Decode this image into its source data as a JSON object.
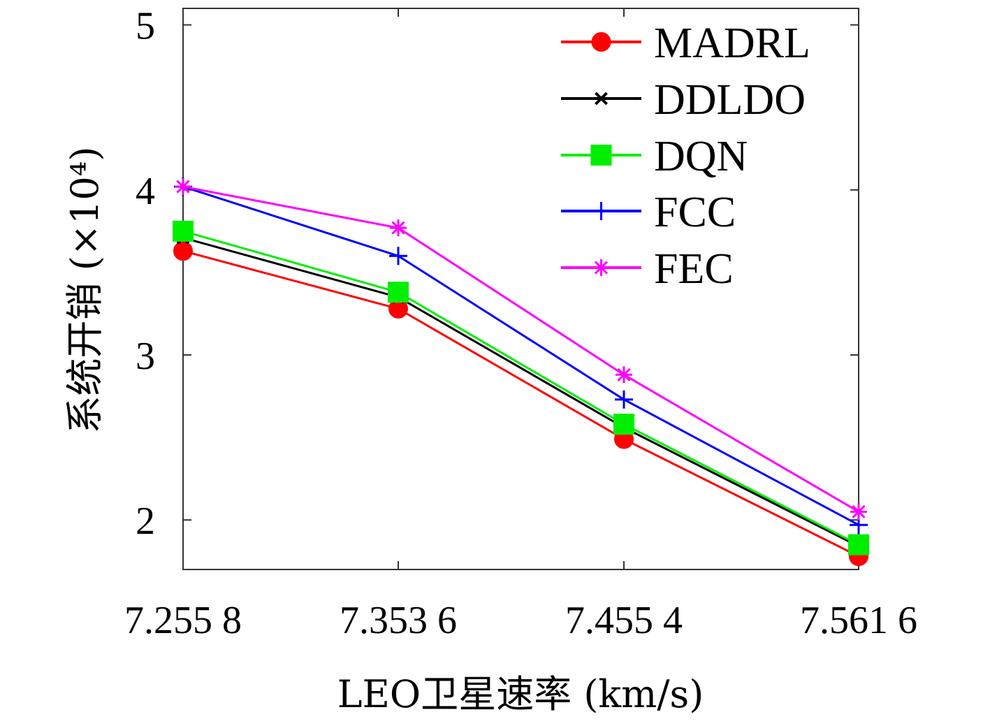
{
  "chart_data": {
    "type": "line",
    "xlabel": "LEO卫星速率 (km/s)",
    "ylabel": "系统开销 (×10⁴)",
    "categories": [
      "7.255 8",
      "7.353 6",
      "7.455 4",
      "7.561 6"
    ],
    "ylim": [
      1.7,
      5.1
    ],
    "yticks": [
      2,
      3,
      4,
      5
    ],
    "grid": false,
    "legend_position": "top-right",
    "series": [
      {
        "name": "MADRL",
        "color": "#ff0000",
        "marker": "circle",
        "values": [
          3.63,
          3.28,
          2.49,
          1.78
        ]
      },
      {
        "name": "DDLDO",
        "color": "#000000",
        "marker": "x",
        "values": [
          3.71,
          3.35,
          2.56,
          1.84
        ]
      },
      {
        "name": "DQN",
        "color": "#00ee00",
        "marker": "square",
        "values": [
          3.75,
          3.38,
          2.58,
          1.85
        ]
      },
      {
        "name": "FCC",
        "color": "#0000ff",
        "marker": "plus",
        "values": [
          4.02,
          3.6,
          2.73,
          1.97
        ]
      },
      {
        "name": "FEC",
        "color": "#ff00ff",
        "marker": "asterisk",
        "values": [
          4.02,
          3.77,
          2.88,
          2.05
        ]
      }
    ]
  }
}
